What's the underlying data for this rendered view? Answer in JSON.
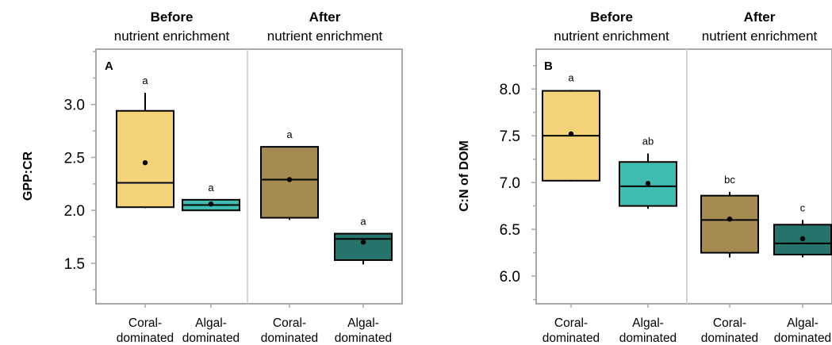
{
  "chart_data": [
    {
      "type": "box",
      "panel_label": "A",
      "ylabel": "GPP:CR",
      "ylim": [
        1.2,
        3.5
      ],
      "yticks": [
        "1.5",
        "2.0",
        "2.5",
        "3.0"
      ],
      "groups": [
        {
          "title": "Before",
          "subtitle": "nutrient enrichment"
        },
        {
          "title": "After",
          "subtitle": "nutrient enrichment"
        }
      ],
      "categories": [
        {
          "line1": "Coral-",
          "line2": "dominated"
        },
        {
          "line1": "Algal-",
          "line2": "dominated"
        },
        {
          "line1": "Coral-",
          "line2": "dominated"
        },
        {
          "line1": "Algal-",
          "line2": "dominated"
        }
      ],
      "boxes": [
        {
          "min": 2.02,
          "q1": 2.03,
          "median": 2.26,
          "q3": 2.94,
          "max": 3.11,
          "mean": 2.45,
          "label": "a",
          "color": "#F4D27A"
        },
        {
          "min": 2.0,
          "q1": 2.0,
          "median": 2.05,
          "q3": 2.1,
          "max": 2.1,
          "mean": 2.06,
          "label": "a",
          "color": "#3FBCAF"
        },
        {
          "min": 1.91,
          "q1": 1.93,
          "median": 2.29,
          "q3": 2.6,
          "max": 2.6,
          "mean": 2.29,
          "label": "a",
          "color": "#A58B52"
        },
        {
          "min": 1.49,
          "q1": 1.53,
          "median": 1.73,
          "q3": 1.78,
          "max": 1.78,
          "mean": 1.7,
          "label": "a",
          "color": "#25736A"
        }
      ]
    },
    {
      "type": "box",
      "panel_label": "B",
      "ylabel": "C:N of DOM",
      "ylim": [
        5.73,
        8.4
      ],
      "yticks": [
        "6.0",
        "6.5",
        "7.0",
        "7.5",
        "8.0"
      ],
      "groups": [
        {
          "title": "Before",
          "subtitle": "nutrient enrichment"
        },
        {
          "title": "After",
          "subtitle": "nutrient enrichment"
        }
      ],
      "categories": [
        {
          "line1": "Coral-",
          "line2": "dominated"
        },
        {
          "line1": "Algal-",
          "line2": "dominated"
        },
        {
          "line1": "Coral-",
          "line2": "dominated"
        },
        {
          "line1": "Algal-",
          "line2": "dominated"
        }
      ],
      "boxes": [
        {
          "min": 7.01,
          "q1": 7.02,
          "median": 7.5,
          "q3": 7.98,
          "max": 7.99,
          "mean": 7.52,
          "label": "a",
          "color": "#F4D27A"
        },
        {
          "min": 6.72,
          "q1": 6.75,
          "median": 6.96,
          "q3": 7.22,
          "max": 7.31,
          "mean": 6.99,
          "label": "ab",
          "color": "#3FBCAF"
        },
        {
          "min": 6.2,
          "q1": 6.25,
          "median": 6.6,
          "q3": 6.86,
          "max": 6.9,
          "mean": 6.61,
          "label": "bc",
          "color": "#A58B52"
        },
        {
          "min": 6.2,
          "q1": 6.23,
          "median": 6.35,
          "q3": 6.55,
          "max": 6.6,
          "mean": 6.4,
          "label": "c",
          "color": "#25736A"
        }
      ]
    }
  ]
}
